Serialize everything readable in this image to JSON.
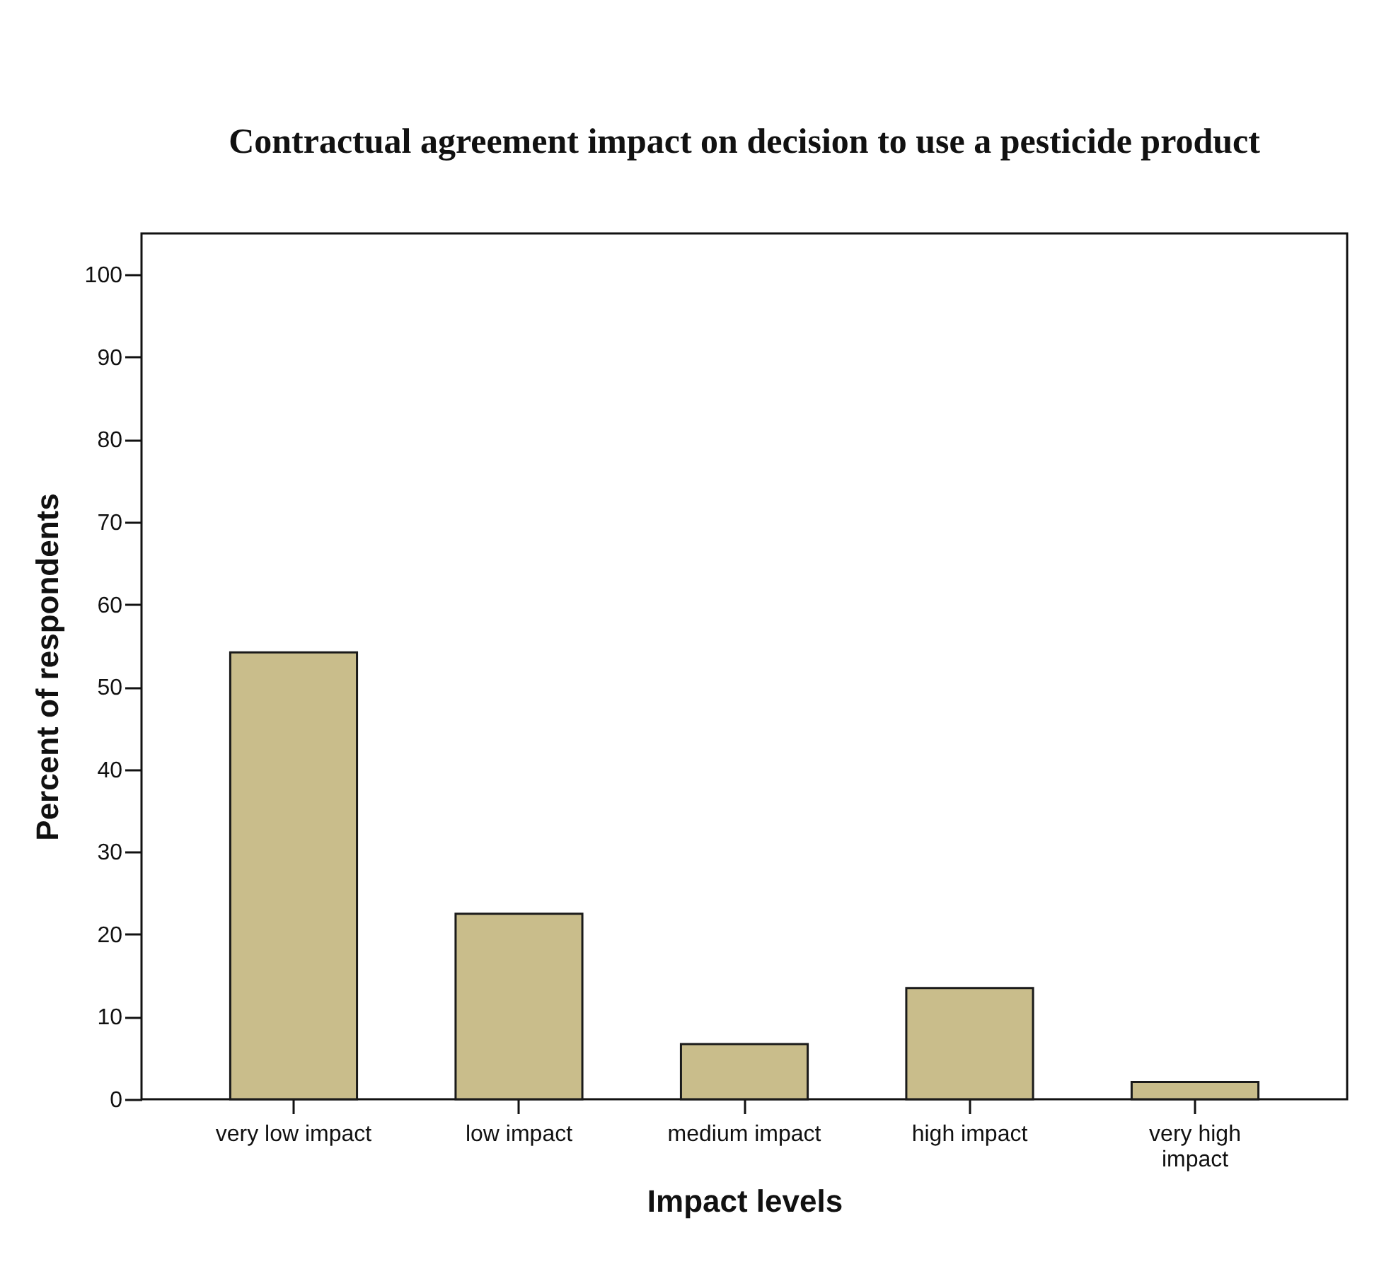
{
  "chart_data": {
    "type": "bar",
    "title": "Contractual agreement impact on decision to use a pesticide product",
    "xlabel": "Impact levels",
    "ylabel": "Percent of respondents",
    "categories": [
      "very low impact",
      "low impact",
      "medium impact",
      "high impact",
      "very high impact"
    ],
    "values": [
      54.2,
      22.5,
      6.7,
      13.5,
      2.1
    ],
    "color": "#c9bd8b",
    "ylim": [
      0,
      105
    ],
    "yticks": [
      0,
      10,
      20,
      30,
      40,
      50,
      60,
      70,
      80,
      90,
      100
    ],
    "grid": false
  }
}
